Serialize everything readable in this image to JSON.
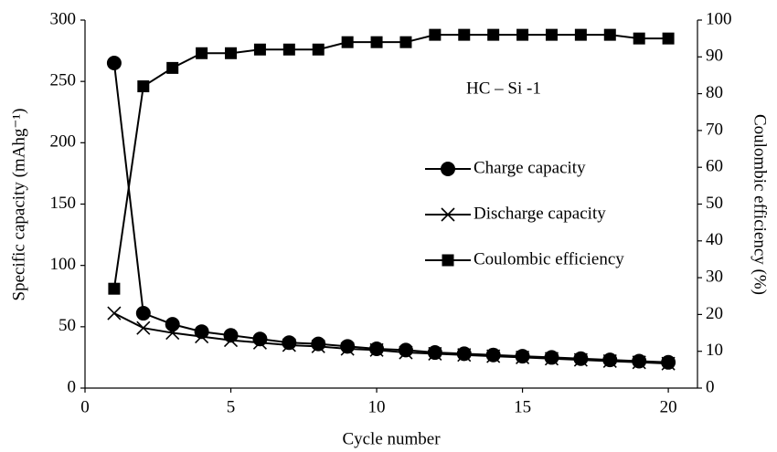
{
  "chart_data": {
    "type": "line",
    "annotation": "HC – Si -1",
    "x_label": "Cycle number",
    "y_label": "Specific capacity (mAhg⁻¹)",
    "y2_label": "Coulombic efficiency (%)",
    "x": [
      1,
      2,
      3,
      4,
      5,
      6,
      7,
      8,
      9,
      10,
      11,
      12,
      13,
      14,
      15,
      16,
      17,
      18,
      19,
      20
    ],
    "xlim": [
      0,
      21
    ],
    "xticks": [
      0,
      5,
      10,
      15,
      20
    ],
    "ylim": [
      0,
      300
    ],
    "yticks": [
      0,
      50,
      100,
      150,
      200,
      250,
      300
    ],
    "y2lim": [
      0,
      100
    ],
    "y2ticks": [
      0,
      10,
      20,
      30,
      40,
      50,
      60,
      70,
      80,
      90,
      100
    ],
    "legend": "right",
    "series": [
      {
        "name": "Charge capacity",
        "color": "#000000",
        "marker": "circle",
        "values": [
          265,
          61,
          52,
          46,
          43,
          40,
          37,
          36,
          34,
          32,
          31,
          29,
          28,
          27,
          26,
          25,
          24,
          23,
          22,
          21
        ]
      },
      {
        "name": "Discharge capacity",
        "color": "#000000",
        "marker": "x",
        "values": [
          61,
          49,
          45,
          42,
          39,
          37,
          35,
          34,
          32,
          31,
          29,
          28,
          27,
          26,
          25,
          24,
          23,
          22,
          21,
          20
        ]
      },
      {
        "name": "Coulombic efficiency",
        "color": "#000000",
        "marker": "square",
        "axis": "y2",
        "values": [
          27,
          82,
          87,
          91,
          91,
          92,
          92,
          92,
          94,
          94,
          94,
          96,
          96,
          96,
          96,
          96,
          96,
          96,
          95,
          95
        ]
      }
    ]
  }
}
